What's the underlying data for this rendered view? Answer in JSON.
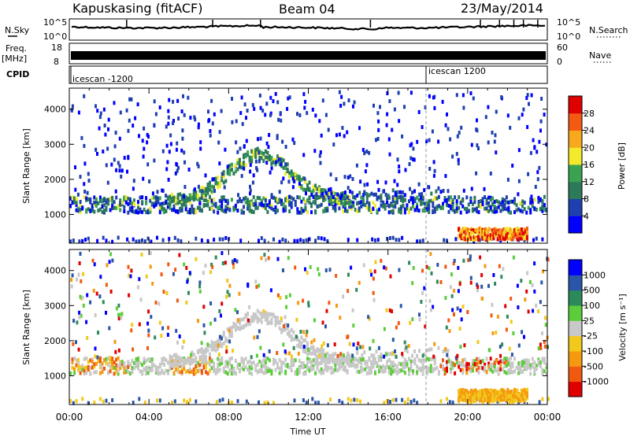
{
  "header": {
    "station": "Kapuskasing (fitACF)",
    "beam": "Beam 04",
    "date": "23/May/2014"
  },
  "noise_panel": {
    "left_label": "N.Sky",
    "right_label": "N.Search",
    "left_ticks": [
      "10^5",
      "10^0"
    ],
    "right_ticks": [
      "10^5",
      "10^0"
    ]
  },
  "freq_panel": {
    "left_label": "Freq.",
    "left_unit": "[MHz]",
    "left_ticks": [
      "18",
      "8"
    ],
    "right_label": "Nave",
    "right_ticks": [
      "60",
      "0"
    ]
  },
  "cpid_panel": {
    "label": "CPID",
    "segments": [
      {
        "name": "icescan -1200",
        "start_hour": 0
      },
      {
        "name": "icescan 1200",
        "start_hour": 18.2
      }
    ]
  },
  "chart_data": [
    {
      "type": "heatmap",
      "quantity": "Power",
      "colorbar_label": "Power [dB]",
      "ylabel": "Slant Range [km]",
      "ylim": [
        180,
        4600
      ],
      "xlim": [
        0,
        24
      ],
      "yticks": [
        1000,
        2000,
        3000,
        4000
      ],
      "colorbar_ticks": [
        "4",
        "8",
        "12",
        "16",
        "20",
        "24",
        "28"
      ],
      "colors": [
        "#0000ff",
        "#1e3fb0",
        "#2c7a5a",
        "#3aa352",
        "#f2ea2a",
        "#f7a81d",
        "#f55a13",
        "#e00000"
      ],
      "features": [
        {
          "name": "E-region band",
          "range_km": [
            1000,
            1500
          ],
          "hours": [
            0,
            24
          ]
        },
        {
          "name": "Arc echo",
          "range_km": [
            1200,
            2800
          ],
          "hours": [
            5,
            14
          ]
        },
        {
          "name": "Near range scatter",
          "range_km": [
            200,
            600
          ],
          "hours": [
            19.5,
            23
          ]
        }
      ]
    },
    {
      "type": "heatmap",
      "quantity": "Velocity",
      "colorbar_label": "Velocity [m s⁻¹]",
      "ylabel": "Slant Range [km]",
      "xlabel": "Time UT",
      "ylim": [
        180,
        4600
      ],
      "xlim": [
        0,
        24
      ],
      "yticks": [
        1000,
        2000,
        3000,
        4000
      ],
      "xticks": [
        "00:00",
        "04:00",
        "08:00",
        "12:00",
        "16:00",
        "20:00",
        "00:00"
      ],
      "colorbar_ticks": [
        "1000",
        "500",
        "100",
        "25",
        "-25",
        "-100",
        "-500",
        "-1000"
      ],
      "colors": [
        "#0000ff",
        "#2a55a8",
        "#2c8a5a",
        "#5ccd3a",
        "#c8c8c8",
        "#f2c81a",
        "#f59a10",
        "#f05a10",
        "#e00000"
      ]
    }
  ]
}
